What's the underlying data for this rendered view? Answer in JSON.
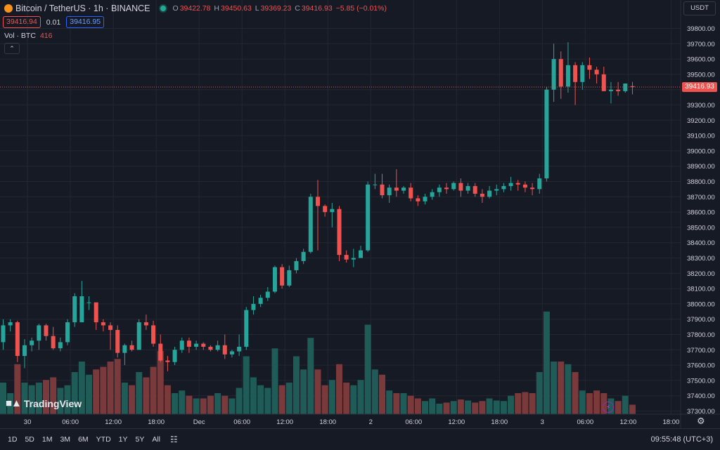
{
  "header": {
    "symbol_title": "Bitcoin / TetherUS · 1h · BINANCE",
    "ohlc": {
      "o_label": "O",
      "o": "39422.78",
      "h_label": "H",
      "h": "39450.63",
      "l_label": "L",
      "l": "39369.23",
      "c_label": "C",
      "c": "39416.93",
      "change": "−5.85 (−0.01%)"
    },
    "bid": "39416.94",
    "spread": "0.01",
    "ask": "39416.95",
    "volume_label": "Vol · BTC",
    "volume_value": "416",
    "currency": "USDT",
    "last_price": "39416.93"
  },
  "watermark": "TradingView",
  "bottom_bar": {
    "ranges": [
      "1D",
      "5D",
      "1M",
      "3M",
      "6M",
      "YTD",
      "1Y",
      "5Y",
      "All"
    ],
    "clock": "09:55:48 (UTC+3)"
  },
  "colors": {
    "background": "#161a25",
    "up": "#26a69a",
    "down": "#ef5350",
    "up_volume": "#1f5b57",
    "down_volume": "#7a3a3b",
    "grid": "#232733"
  },
  "chart_data": {
    "type": "candlestick",
    "series_name": "",
    "y_ticks": [
      37300,
      37400,
      37500,
      37600,
      37700,
      37800,
      37900,
      38000,
      38100,
      38200,
      38300,
      38400,
      38500,
      38600,
      38700,
      38800,
      38900,
      39000,
      39100,
      39200,
      39300,
      39400,
      39500,
      39600,
      39700,
      39800
    ],
    "ylim": [
      37250,
      39850
    ],
    "x_ticks": [
      {
        "label": "30",
        "index": 3.4
      },
      {
        "label": "06:00",
        "index": 9.4
      },
      {
        "label": "12:00",
        "index": 15.4
      },
      {
        "label": "18:00",
        "index": 21.4
      },
      {
        "label": "Dec",
        "index": 27.4
      },
      {
        "label": "06:00",
        "index": 33.4
      },
      {
        "label": "12:00",
        "index": 39.4
      },
      {
        "label": "18:00",
        "index": 45.4
      },
      {
        "label": "2",
        "index": 51.4
      },
      {
        "label": "06:00",
        "index": 57.4
      },
      {
        "label": "12:00",
        "index": 63.4
      },
      {
        "label": "18:00",
        "index": 69.4
      },
      {
        "label": "3",
        "index": 75.4
      },
      {
        "label": "06:00",
        "index": 81.4
      },
      {
        "label": "12:00",
        "index": 87.4
      },
      {
        "label": "18:00",
        "index": 93.4
      }
    ],
    "grid": true,
    "candles": [
      [
        37750,
        37900,
        37700,
        37860,
        60
      ],
      [
        37860,
        37900,
        37820,
        37880,
        40
      ],
      [
        37880,
        37890,
        37620,
        37660,
        95
      ],
      [
        37660,
        37770,
        37580,
        37730,
        60
      ],
      [
        37730,
        37780,
        37690,
        37760,
        55
      ],
      [
        37760,
        37870,
        37700,
        37860,
        60
      ],
      [
        37860,
        37870,
        37760,
        37790,
        65
      ],
      [
        37790,
        37850,
        37700,
        37710,
        70
      ],
      [
        37710,
        37780,
        37690,
        37750,
        50
      ],
      [
        37750,
        37900,
        37730,
        37880,
        55
      ],
      [
        37880,
        38070,
        37850,
        38050,
        80
      ],
      [
        37880,
        38150,
        37900,
        38050,
        100
      ],
      [
        38010,
        38050,
        37960,
        38010,
        75
      ],
      [
        38010,
        38000,
        37830,
        37880,
        85
      ],
      [
        37880,
        37900,
        37820,
        37860,
        90
      ],
      [
        37860,
        37880,
        37700,
        37830,
        100
      ],
      [
        37830,
        37860,
        37650,
        37680,
        105
      ],
      [
        37680,
        37740,
        37600,
        37730,
        60
      ],
      [
        37730,
        37760,
        37690,
        37700,
        55
      ],
      [
        37700,
        37900,
        37720,
        37880,
        80
      ],
      [
        37880,
        37930,
        37830,
        37860,
        70
      ],
      [
        37860,
        37890,
        37720,
        37740,
        90
      ],
      [
        37740,
        37800,
        37620,
        37630,
        120
      ],
      [
        37630,
        37660,
        37560,
        37620,
        55
      ],
      [
        37620,
        37720,
        37600,
        37700,
        40
      ],
      [
        37700,
        37780,
        37680,
        37760,
        45
      ],
      [
        37760,
        37780,
        37680,
        37720,
        35
      ],
      [
        37720,
        37760,
        37700,
        37740,
        30
      ],
      [
        37740,
        37750,
        37700,
        37720,
        30
      ],
      [
        37720,
        37730,
        37690,
        37700,
        35
      ],
      [
        37700,
        37760,
        37690,
        37730,
        40
      ],
      [
        37730,
        37800,
        37640,
        37670,
        35
      ],
      [
        37670,
        37700,
        37650,
        37690,
        30
      ],
      [
        37690,
        37800,
        37660,
        37720,
        50
      ],
      [
        37720,
        37980,
        37700,
        37960,
        110
      ],
      [
        37960,
        38050,
        37930,
        38000,
        70
      ],
      [
        38000,
        38060,
        37980,
        38040,
        55
      ],
      [
        38040,
        38110,
        38020,
        38080,
        50
      ],
      [
        38080,
        38250,
        38070,
        38240,
        125
      ],
      [
        38240,
        38260,
        38100,
        38120,
        55
      ],
      [
        38120,
        38250,
        38110,
        38220,
        60
      ],
      [
        38220,
        38300,
        38200,
        38280,
        110
      ],
      [
        38280,
        38360,
        38260,
        38340,
        85
      ],
      [
        38340,
        38720,
        38330,
        38700,
        145
      ],
      [
        38700,
        38810,
        38350,
        38640,
        85
      ],
      [
        38640,
        38650,
        38570,
        38600,
        55
      ],
      [
        38600,
        38660,
        38500,
        38620,
        65
      ],
      [
        38620,
        38640,
        38280,
        38320,
        95
      ],
      [
        38320,
        38350,
        38270,
        38290,
        60
      ],
      [
        38290,
        38360,
        38240,
        38300,
        55
      ],
      [
        38300,
        38380,
        38320,
        38350,
        65
      ],
      [
        38350,
        38800,
        38340,
        38780,
        170
      ],
      [
        38780,
        38850,
        38750,
        38780,
        85
      ],
      [
        38780,
        38850,
        38690,
        38710,
        75
      ],
      [
        38710,
        38780,
        38660,
        38760,
        45
      ],
      [
        38760,
        38880,
        38700,
        38740,
        40
      ],
      [
        38740,
        38770,
        38720,
        38760,
        40
      ],
      [
        38760,
        38790,
        38670,
        38690,
        35
      ],
      [
        38690,
        38710,
        38640,
        38670,
        30
      ],
      [
        38670,
        38720,
        38650,
        38700,
        25
      ],
      [
        38700,
        38750,
        38680,
        38730,
        30
      ],
      [
        38730,
        38780,
        38700,
        38760,
        20
      ],
      [
        38760,
        38790,
        38720,
        38750,
        22
      ],
      [
        38750,
        38800,
        38740,
        38790,
        25
      ],
      [
        38790,
        38820,
        38700,
        38740,
        28
      ],
      [
        38740,
        38790,
        38720,
        38770,
        26
      ],
      [
        38770,
        38790,
        38700,
        38720,
        22
      ],
      [
        38720,
        38750,
        38660,
        38700,
        25
      ],
      [
        38700,
        38770,
        38690,
        38740,
        30
      ],
      [
        38740,
        38780,
        38710,
        38750,
        26
      ],
      [
        38750,
        38790,
        38730,
        38770,
        25
      ],
      [
        38770,
        38830,
        38740,
        38790,
        35
      ],
      [
        38790,
        38810,
        38740,
        38780,
        40
      ],
      [
        38780,
        38800,
        38730,
        38760,
        42
      ],
      [
        38760,
        38790,
        38710,
        38750,
        40
      ],
      [
        38750,
        38850,
        38720,
        38820,
        80
      ],
      [
        38820,
        39420,
        38800,
        39400,
        195
      ],
      [
        39400,
        39700,
        39320,
        39600,
        100
      ],
      [
        39600,
        39650,
        39340,
        39420,
        100
      ],
      [
        39420,
        39710,
        39380,
        39560,
        95
      ],
      [
        39560,
        39580,
        39300,
        39450,
        80
      ],
      [
        39450,
        39580,
        39400,
        39560,
        45
      ],
      [
        39560,
        39610,
        39470,
        39530,
        40
      ],
      [
        39530,
        39550,
        39440,
        39500,
        45
      ],
      [
        39500,
        39550,
        39390,
        39390,
        40
      ],
      [
        39390,
        39450,
        39310,
        39400,
        30
      ],
      [
        39400,
        39450,
        39360,
        39390,
        25
      ],
      [
        39390,
        39440,
        39380,
        39440,
        35
      ],
      [
        39422.78,
        39450.63,
        39369.23,
        39416.93,
        18
      ]
    ]
  }
}
